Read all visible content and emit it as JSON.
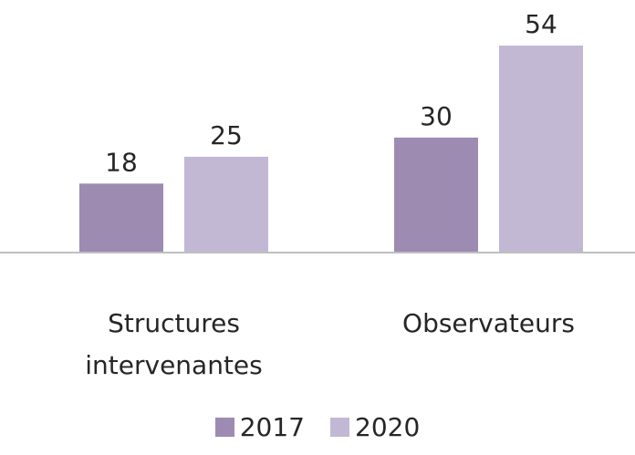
{
  "chart_data": {
    "type": "bar",
    "categories": [
      "Structures intervenantes",
      "Observateurs"
    ],
    "series": [
      {
        "name": "2017",
        "color": "#9d8bb1",
        "values": [
          18,
          30
        ]
      },
      {
        "name": "2020",
        "color": "#c2b8d3",
        "values": [
          25,
          54
        ]
      }
    ]
  }
}
